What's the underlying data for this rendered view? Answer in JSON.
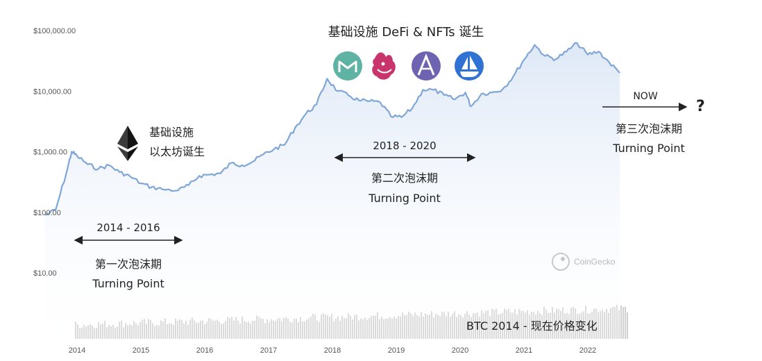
{
  "chart_data": {
    "type": "area",
    "y_scale": "log",
    "ylim": [
      10,
      100000
    ],
    "y_ticks": [
      "$10.00",
      "$100.00",
      "$1,000.00",
      "$10,000.00",
      "$100,000.00"
    ],
    "y_tick_values": [
      10,
      100,
      1000,
      10000,
      100000
    ],
    "x_ticks": [
      "2014",
      "2015",
      "2016",
      "2017",
      "2018",
      "2019",
      "2020",
      "2021",
      "2022"
    ],
    "x": [
      "2013-07",
      "2013-09",
      "2013-11",
      "2013-12",
      "2014-01",
      "2014-03",
      "2014-05",
      "2014-07",
      "2014-09",
      "2014-11",
      "2015-01",
      "2015-03",
      "2015-05",
      "2015-08",
      "2015-10",
      "2015-12",
      "2016-02",
      "2016-04",
      "2016-06",
      "2016-08",
      "2016-10",
      "2016-12",
      "2017-02",
      "2017-04",
      "2017-06",
      "2017-08",
      "2017-10",
      "2017-12",
      "2018-02",
      "2018-04",
      "2018-06",
      "2018-08",
      "2018-10",
      "2018-12",
      "2019-02",
      "2019-04",
      "2019-06",
      "2019-08",
      "2019-10",
      "2019-12",
      "2020-02",
      "2020-03",
      "2020-05",
      "2020-07",
      "2020-09",
      "2020-11",
      "2021-01",
      "2021-03",
      "2021-05",
      "2021-07",
      "2021-09",
      "2021-11",
      "2022-01",
      "2022-03",
      "2022-05",
      "2022-07"
    ],
    "series": [
      {
        "values": [
          90,
          110,
          450,
          1000,
          850,
          620,
          520,
          600,
          460,
          390,
          300,
          260,
          240,
          230,
          280,
          400,
          420,
          440,
          650,
          600,
          680,
          900,
          1100,
          1300,
          2500,
          4200,
          6000,
          16000,
          10000,
          8500,
          7000,
          6800,
          6500,
          3800,
          3700,
          5200,
          10500,
          10500,
          8600,
          7300,
          9500,
          5600,
          9000,
          9500,
          10800,
          17500,
          33000,
          58000,
          38000,
          34000,
          45000,
          62000,
          40000,
          45000,
          30000,
          20000
        ]
      }
    ],
    "volume_label": "BTC 2014 - 现在价格变化"
  },
  "annotations": {
    "infra_eth_line1": "基础设施",
    "infra_eth_line2": "以太坊诞生",
    "infra_defi": "基础设施 DeFi & NFTs 诞生",
    "p1_range": "2014 - 2016",
    "p1_title": "第一次泡沫期",
    "p1_sub": "Turning Point",
    "p2_range": "2018 - 2020",
    "p2_title": "第二次泡沫期",
    "p2_sub": "Turning Point",
    "p3_now": "NOW",
    "p3_q": "?",
    "p3_title": "第三次泡沫期",
    "p3_sub": "Turning Point",
    "watermark": "CoinGecko"
  },
  "icons": [
    "ethereum-icon",
    "maker-icon",
    "uniswap-icon",
    "aave-icon",
    "opensea-icon",
    "coingecko-logo-icon"
  ],
  "colors": {
    "price_line": "#7fa6d6",
    "area_fill": "#dfe9f7",
    "volume": "#d0d0d0",
    "maker": "#5fb3a5",
    "uniswap": "#c8346c",
    "aave": "#6e63b0",
    "opensea": "#2f72d4"
  }
}
